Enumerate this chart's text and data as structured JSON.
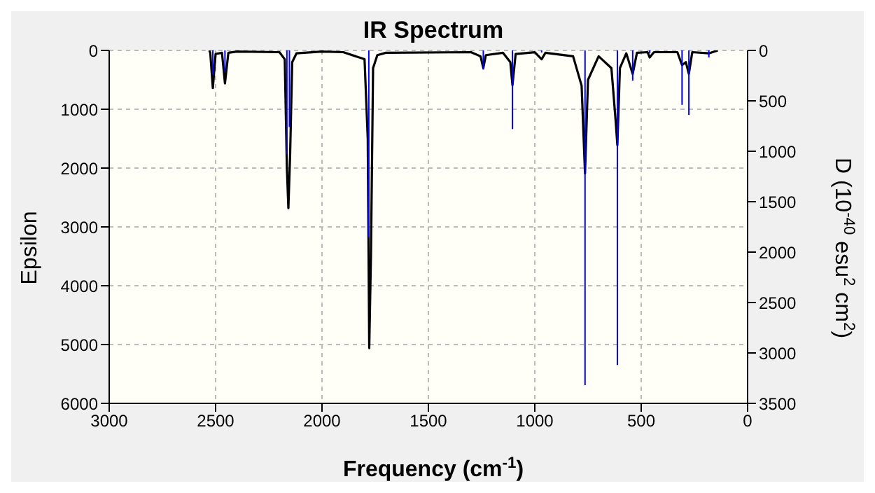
{
  "chart_data": {
    "type": "line",
    "title": "IR Spectrum",
    "xlabel": "Frequency (cm$^{-1}$)",
    "ylabel": "Epsilon",
    "y2label": "D (10$^{-40}$ esu$^{2}$ cm$^{2}$)",
    "xlim": [
      3000,
      0
    ],
    "xticks": [
      3000,
      2500,
      2000,
      1500,
      1000,
      500,
      0
    ],
    "ylim": [
      6000,
      0
    ],
    "yticks": [
      0,
      1000,
      2000,
      3000,
      4000,
      5000,
      6000
    ],
    "y2lim": [
      3500,
      0
    ],
    "y2ticks": [
      0,
      500,
      1000,
      1500,
      2000,
      2500,
      3000,
      3500
    ],
    "grid": true,
    "series": [
      {
        "color": "#000000",
        "x": [
          2530,
          2525,
          2513,
          2500,
          2470,
          2456,
          2440,
          2400,
          2200,
          2175,
          2165,
          2158,
          2150,
          2140,
          2120,
          2000,
          1900,
          1800,
          1785,
          1778,
          1770,
          1760,
          1740,
          1700,
          1300,
          1255,
          1242,
          1230,
          1150,
          1115,
          1105,
          1090,
          1000,
          968,
          950,
          820,
          780,
          764,
          750,
          700,
          640,
          620,
          612,
          600,
          570,
          540,
          520,
          470,
          460,
          440,
          330,
          308,
          290,
          276,
          260,
          182,
          140
        ],
        "values": [
          0,
          40,
          640,
          60,
          40,
          560,
          40,
          20,
          30,
          150,
          2000,
          2680,
          1800,
          200,
          50,
          20,
          30,
          150,
          1500,
          5060,
          3500,
          300,
          80,
          40,
          30,
          100,
          300,
          80,
          40,
          200,
          590,
          60,
          30,
          150,
          40,
          100,
          600,
          2090,
          500,
          100,
          300,
          1200,
          1610,
          300,
          50,
          400,
          40,
          30,
          120,
          30,
          30,
          250,
          200,
          400,
          30,
          50,
          0
        ]
      },
      {
        "type": "bar",
        "axis": "y2",
        "color": "#0000ff",
        "x": [
          2513,
          2456,
          2165,
          2153,
          1780,
          1242,
          1105,
          968,
          764,
          612,
          540,
          460,
          308,
          276,
          182
        ],
        "values": [
          240,
          210,
          1030,
          760,
          1850,
          190,
          780,
          20,
          3320,
          3120,
          300,
          30,
          540,
          640,
          70
        ]
      }
    ]
  }
}
